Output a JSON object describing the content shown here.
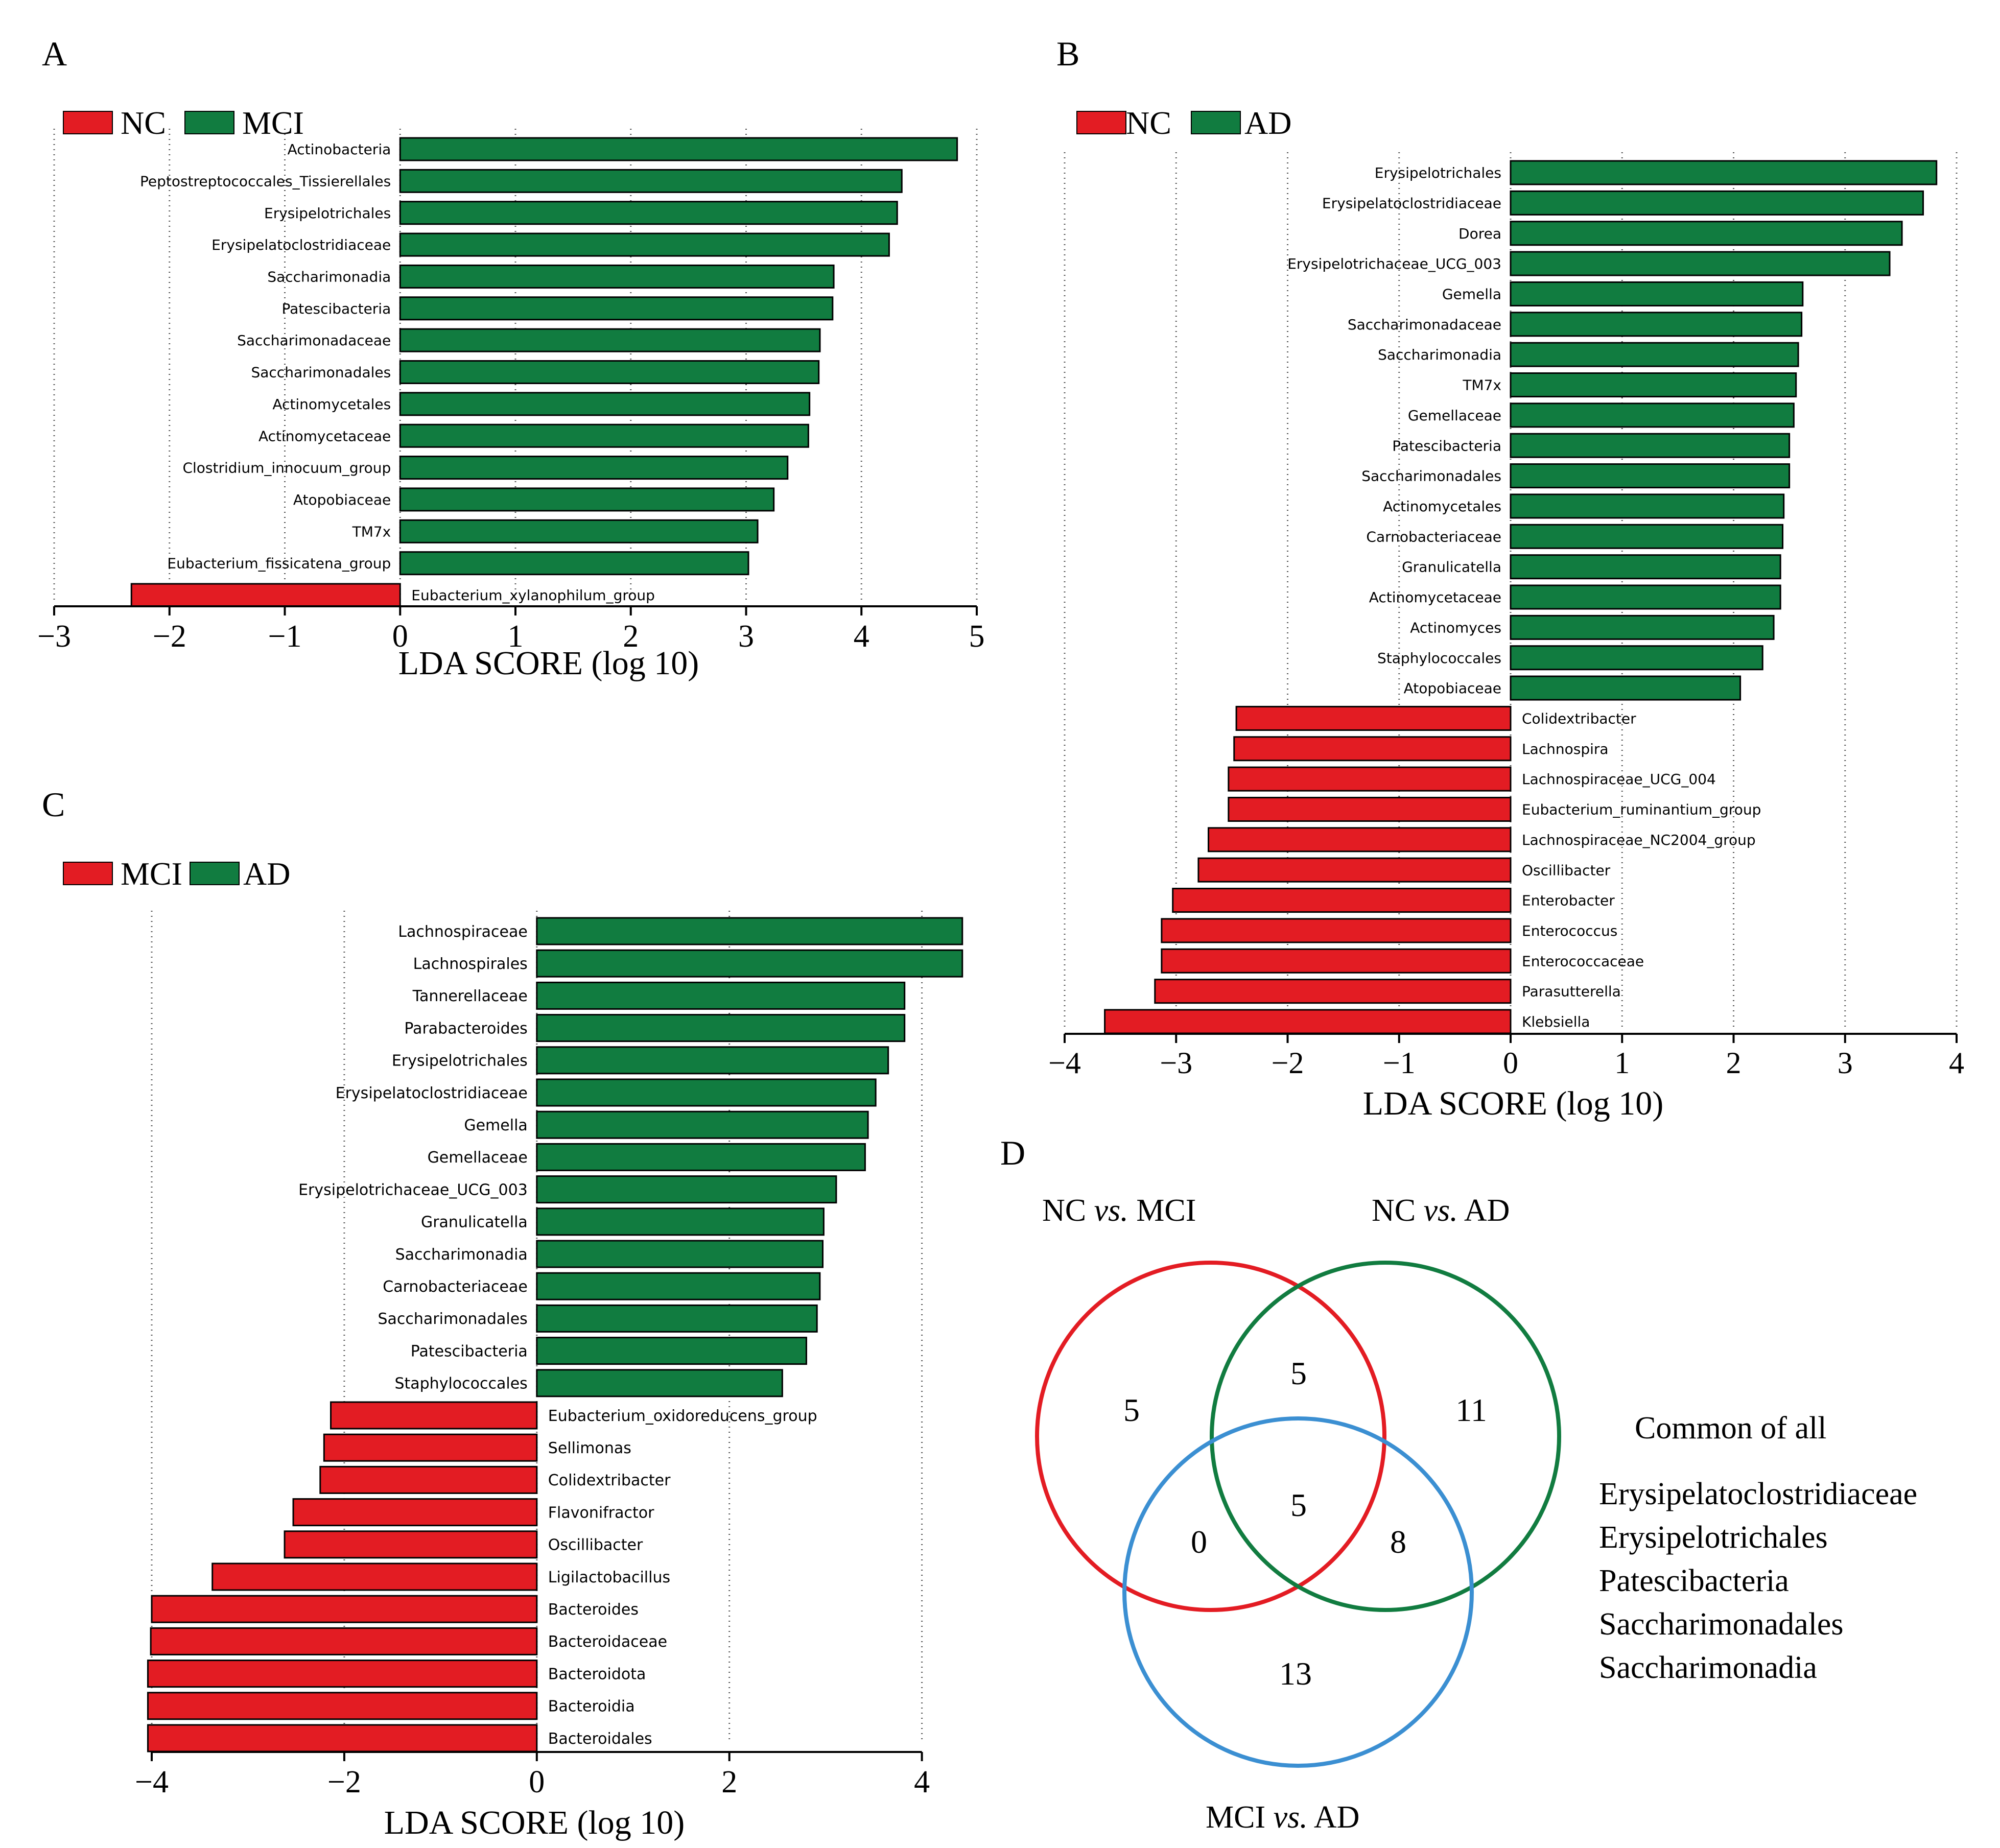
{
  "colors": {
    "red": "#e31c23",
    "green": "#117c40",
    "blue": "#3b8fd2",
    "grid": "#555555"
  },
  "chart_data": [
    {
      "panel": "A",
      "type": "bar",
      "orientation": "horizontal",
      "legend": [
        {
          "label": "NC",
          "color": "red"
        },
        {
          "label": "MCI",
          "color": "green"
        }
      ],
      "xlabel": "LDA SCORE (log 10)",
      "xlim": [
        -3,
        5
      ],
      "xticks": [
        -3,
        -2,
        -1,
        0,
        1,
        2,
        3,
        4,
        5
      ],
      "grid": "vertical dotted",
      "bars": [
        {
          "label": "Actinobacteria",
          "value": 4.83,
          "group": "MCI"
        },
        {
          "label": "Peptostreptococcales_Tissierellales",
          "value": 4.35,
          "group": "MCI"
        },
        {
          "label": "Erysipelotrichales",
          "value": 4.31,
          "group": "MCI"
        },
        {
          "label": "Erysipelatoclostridiaceae",
          "value": 4.24,
          "group": "MCI"
        },
        {
          "label": "Saccharimonadia",
          "value": 3.76,
          "group": "MCI"
        },
        {
          "label": "Patescibacteria",
          "value": 3.75,
          "group": "MCI"
        },
        {
          "label": "Saccharimonadaceae",
          "value": 3.64,
          "group": "MCI"
        },
        {
          "label": "Saccharimonadales",
          "value": 3.63,
          "group": "MCI"
        },
        {
          "label": "Actinomycetales",
          "value": 3.55,
          "group": "MCI"
        },
        {
          "label": "Actinomycetaceae",
          "value": 3.54,
          "group": "MCI"
        },
        {
          "label": "Clostridium_innocuum_group",
          "value": 3.36,
          "group": "MCI"
        },
        {
          "label": "Atopobiaceae",
          "value": 3.24,
          "group": "MCI"
        },
        {
          "label": "TM7x",
          "value": 3.1,
          "group": "MCI"
        },
        {
          "label": "Eubacterium_fissicatena_group",
          "value": 3.02,
          "group": "MCI"
        },
        {
          "label": "Eubacterium_xylanophilum_group",
          "value": -2.33,
          "group": "NC"
        }
      ]
    },
    {
      "panel": "B",
      "type": "bar",
      "orientation": "horizontal",
      "legend": [
        {
          "label": "NC",
          "color": "red"
        },
        {
          "label": "AD",
          "color": "green"
        }
      ],
      "xlabel": "LDA SCORE (log 10)",
      "xlim": [
        -4,
        4
      ],
      "xticks": [
        -4,
        -3,
        -2,
        -1,
        0,
        1,
        2,
        3,
        4
      ],
      "grid": "vertical dotted",
      "bars": [
        {
          "label": "Erysipelotrichales",
          "value": 3.82,
          "group": "AD"
        },
        {
          "label": "Erysipelatoclostridiaceae",
          "value": 3.7,
          "group": "AD"
        },
        {
          "label": "Dorea",
          "value": 3.51,
          "group": "AD"
        },
        {
          "label": "Erysipelotrichaceae_UCG_003",
          "value": 3.4,
          "group": "AD"
        },
        {
          "label": "Gemella",
          "value": 2.62,
          "group": "AD"
        },
        {
          "label": "Saccharimonadaceae",
          "value": 2.61,
          "group": "AD"
        },
        {
          "label": "Saccharimonadia",
          "value": 2.58,
          "group": "AD"
        },
        {
          "label": "TM7x",
          "value": 2.56,
          "group": "AD"
        },
        {
          "label": "Gemellaceae",
          "value": 2.54,
          "group": "AD"
        },
        {
          "label": "Patescibacteria",
          "value": 2.5,
          "group": "AD"
        },
        {
          "label": "Saccharimonadales",
          "value": 2.5,
          "group": "AD"
        },
        {
          "label": "Actinomycetales",
          "value": 2.45,
          "group": "AD"
        },
        {
          "label": "Carnobacteriaceae",
          "value": 2.44,
          "group": "AD"
        },
        {
          "label": "Granulicatella",
          "value": 2.42,
          "group": "AD"
        },
        {
          "label": "Actinomycetaceae",
          "value": 2.42,
          "group": "AD"
        },
        {
          "label": "Actinomyces",
          "value": 2.36,
          "group": "AD"
        },
        {
          "label": "Staphylococcales",
          "value": 2.26,
          "group": "AD"
        },
        {
          "label": "Atopobiaceae",
          "value": 2.06,
          "group": "AD"
        },
        {
          "label": "Colidextribacter",
          "value": -2.46,
          "group": "NC"
        },
        {
          "label": "Lachnospira",
          "value": -2.48,
          "group": "NC"
        },
        {
          "label": "Lachnospiraceae_UCG_004",
          "value": -2.53,
          "group": "NC"
        },
        {
          "label": "Eubacterium_ruminantium_group",
          "value": -2.53,
          "group": "NC"
        },
        {
          "label": "Lachnospiraceae_NC2004_group",
          "value": -2.71,
          "group": "NC"
        },
        {
          "label": "Oscillibacter",
          "value": -2.8,
          "group": "NC"
        },
        {
          "label": "Enterobacter",
          "value": -3.03,
          "group": "NC"
        },
        {
          "label": "Enterococcus",
          "value": -3.13,
          "group": "NC"
        },
        {
          "label": "Enterococcaceae",
          "value": -3.13,
          "group": "NC"
        },
        {
          "label": "Parasutterella",
          "value": -3.19,
          "group": "NC"
        },
        {
          "label": "Klebsiella",
          "value": -3.64,
          "group": "NC"
        }
      ]
    },
    {
      "panel": "C",
      "type": "bar",
      "orientation": "horizontal",
      "legend": [
        {
          "label": "MCI",
          "color": "red"
        },
        {
          "label": "AD",
          "color": "green"
        }
      ],
      "xlabel": "LDA SCORE (log 10)",
      "xlim": [
        -4,
        4.4
      ],
      "xticks": [
        -4,
        -2,
        0,
        2,
        4
      ],
      "gridlines": [
        -4,
        -2,
        0,
        2,
        4
      ],
      "grid": "vertical dotted",
      "bars": [
        {
          "label": "Lachnospiraceae",
          "value": 4.42,
          "group": "AD"
        },
        {
          "label": "Lachnospirales",
          "value": 4.42,
          "group": "AD"
        },
        {
          "label": "Tannerellaceae",
          "value": 3.82,
          "group": "AD"
        },
        {
          "label": "Parabacteroides",
          "value": 3.82,
          "group": "AD"
        },
        {
          "label": "Erysipelotrichales",
          "value": 3.65,
          "group": "AD"
        },
        {
          "label": "Erysipelatoclostridiaceae",
          "value": 3.52,
          "group": "AD"
        },
        {
          "label": "Gemella",
          "value": 3.44,
          "group": "AD"
        },
        {
          "label": "Gemellaceae",
          "value": 3.41,
          "group": "AD"
        },
        {
          "label": "Erysipelotrichaceae_UCG_003",
          "value": 3.11,
          "group": "AD"
        },
        {
          "label": "Granulicatella",
          "value": 2.98,
          "group": "AD"
        },
        {
          "label": "Saccharimonadia",
          "value": 2.97,
          "group": "AD"
        },
        {
          "label": "Carnobacteriaceae",
          "value": 2.94,
          "group": "AD"
        },
        {
          "label": "Saccharimonadales",
          "value": 2.91,
          "group": "AD"
        },
        {
          "label": "Patescibacteria",
          "value": 2.8,
          "group": "AD"
        },
        {
          "label": "Staphylococcales",
          "value": 2.55,
          "group": "AD"
        },
        {
          "label": "Eubacterium_oxidoreducens_group",
          "value": -2.14,
          "group": "MCI"
        },
        {
          "label": "Sellimonas",
          "value": -2.21,
          "group": "MCI"
        },
        {
          "label": "Colidextribacter",
          "value": -2.25,
          "group": "MCI"
        },
        {
          "label": "Flavonifractor",
          "value": -2.53,
          "group": "MCI"
        },
        {
          "label": "Oscillibacter",
          "value": -2.62,
          "group": "MCI"
        },
        {
          "label": "Ligilactobacillus",
          "value": -3.37,
          "group": "MCI"
        },
        {
          "label": "Bacteroides",
          "value": -4.0,
          "group": "MCI"
        },
        {
          "label": "Bacteroidaceae",
          "value": -4.01,
          "group": "MCI"
        },
        {
          "label": "Bacteroidota",
          "value": -4.04,
          "group": "MCI"
        },
        {
          "label": "Bacteroidia",
          "value": -4.04,
          "group": "MCI"
        },
        {
          "label": "Bacteroidales",
          "value": -4.04,
          "group": "MCI"
        }
      ]
    }
  ],
  "venn": {
    "panel": "D",
    "sets": [
      {
        "label_a": "NC ",
        "label_vs": "vs.",
        "label_b": " MCI",
        "color": "red"
      },
      {
        "label_a": "NC ",
        "label_vs": "vs.",
        "label_b": "  AD",
        "color": "green"
      },
      {
        "label_a": "MCI ",
        "label_vs": "vs.",
        "label_b": " AD",
        "color": "blue"
      }
    ],
    "counts": {
      "only_nc_mci": "5",
      "nc_mci_and_nc_ad": "5",
      "only_nc_ad": "11",
      "nc_mci_and_mci_ad": "0",
      "all_three": "5",
      "nc_ad_and_mci_ad": "8",
      "only_mci_ad": "13"
    },
    "common_title": "Common of all",
    "common_items": [
      "Erysipelatoclostridiaceae",
      "Erysipelotrichales",
      "Patescibacteria",
      "Saccharimonadales",
      "Saccharimonadia"
    ]
  }
}
